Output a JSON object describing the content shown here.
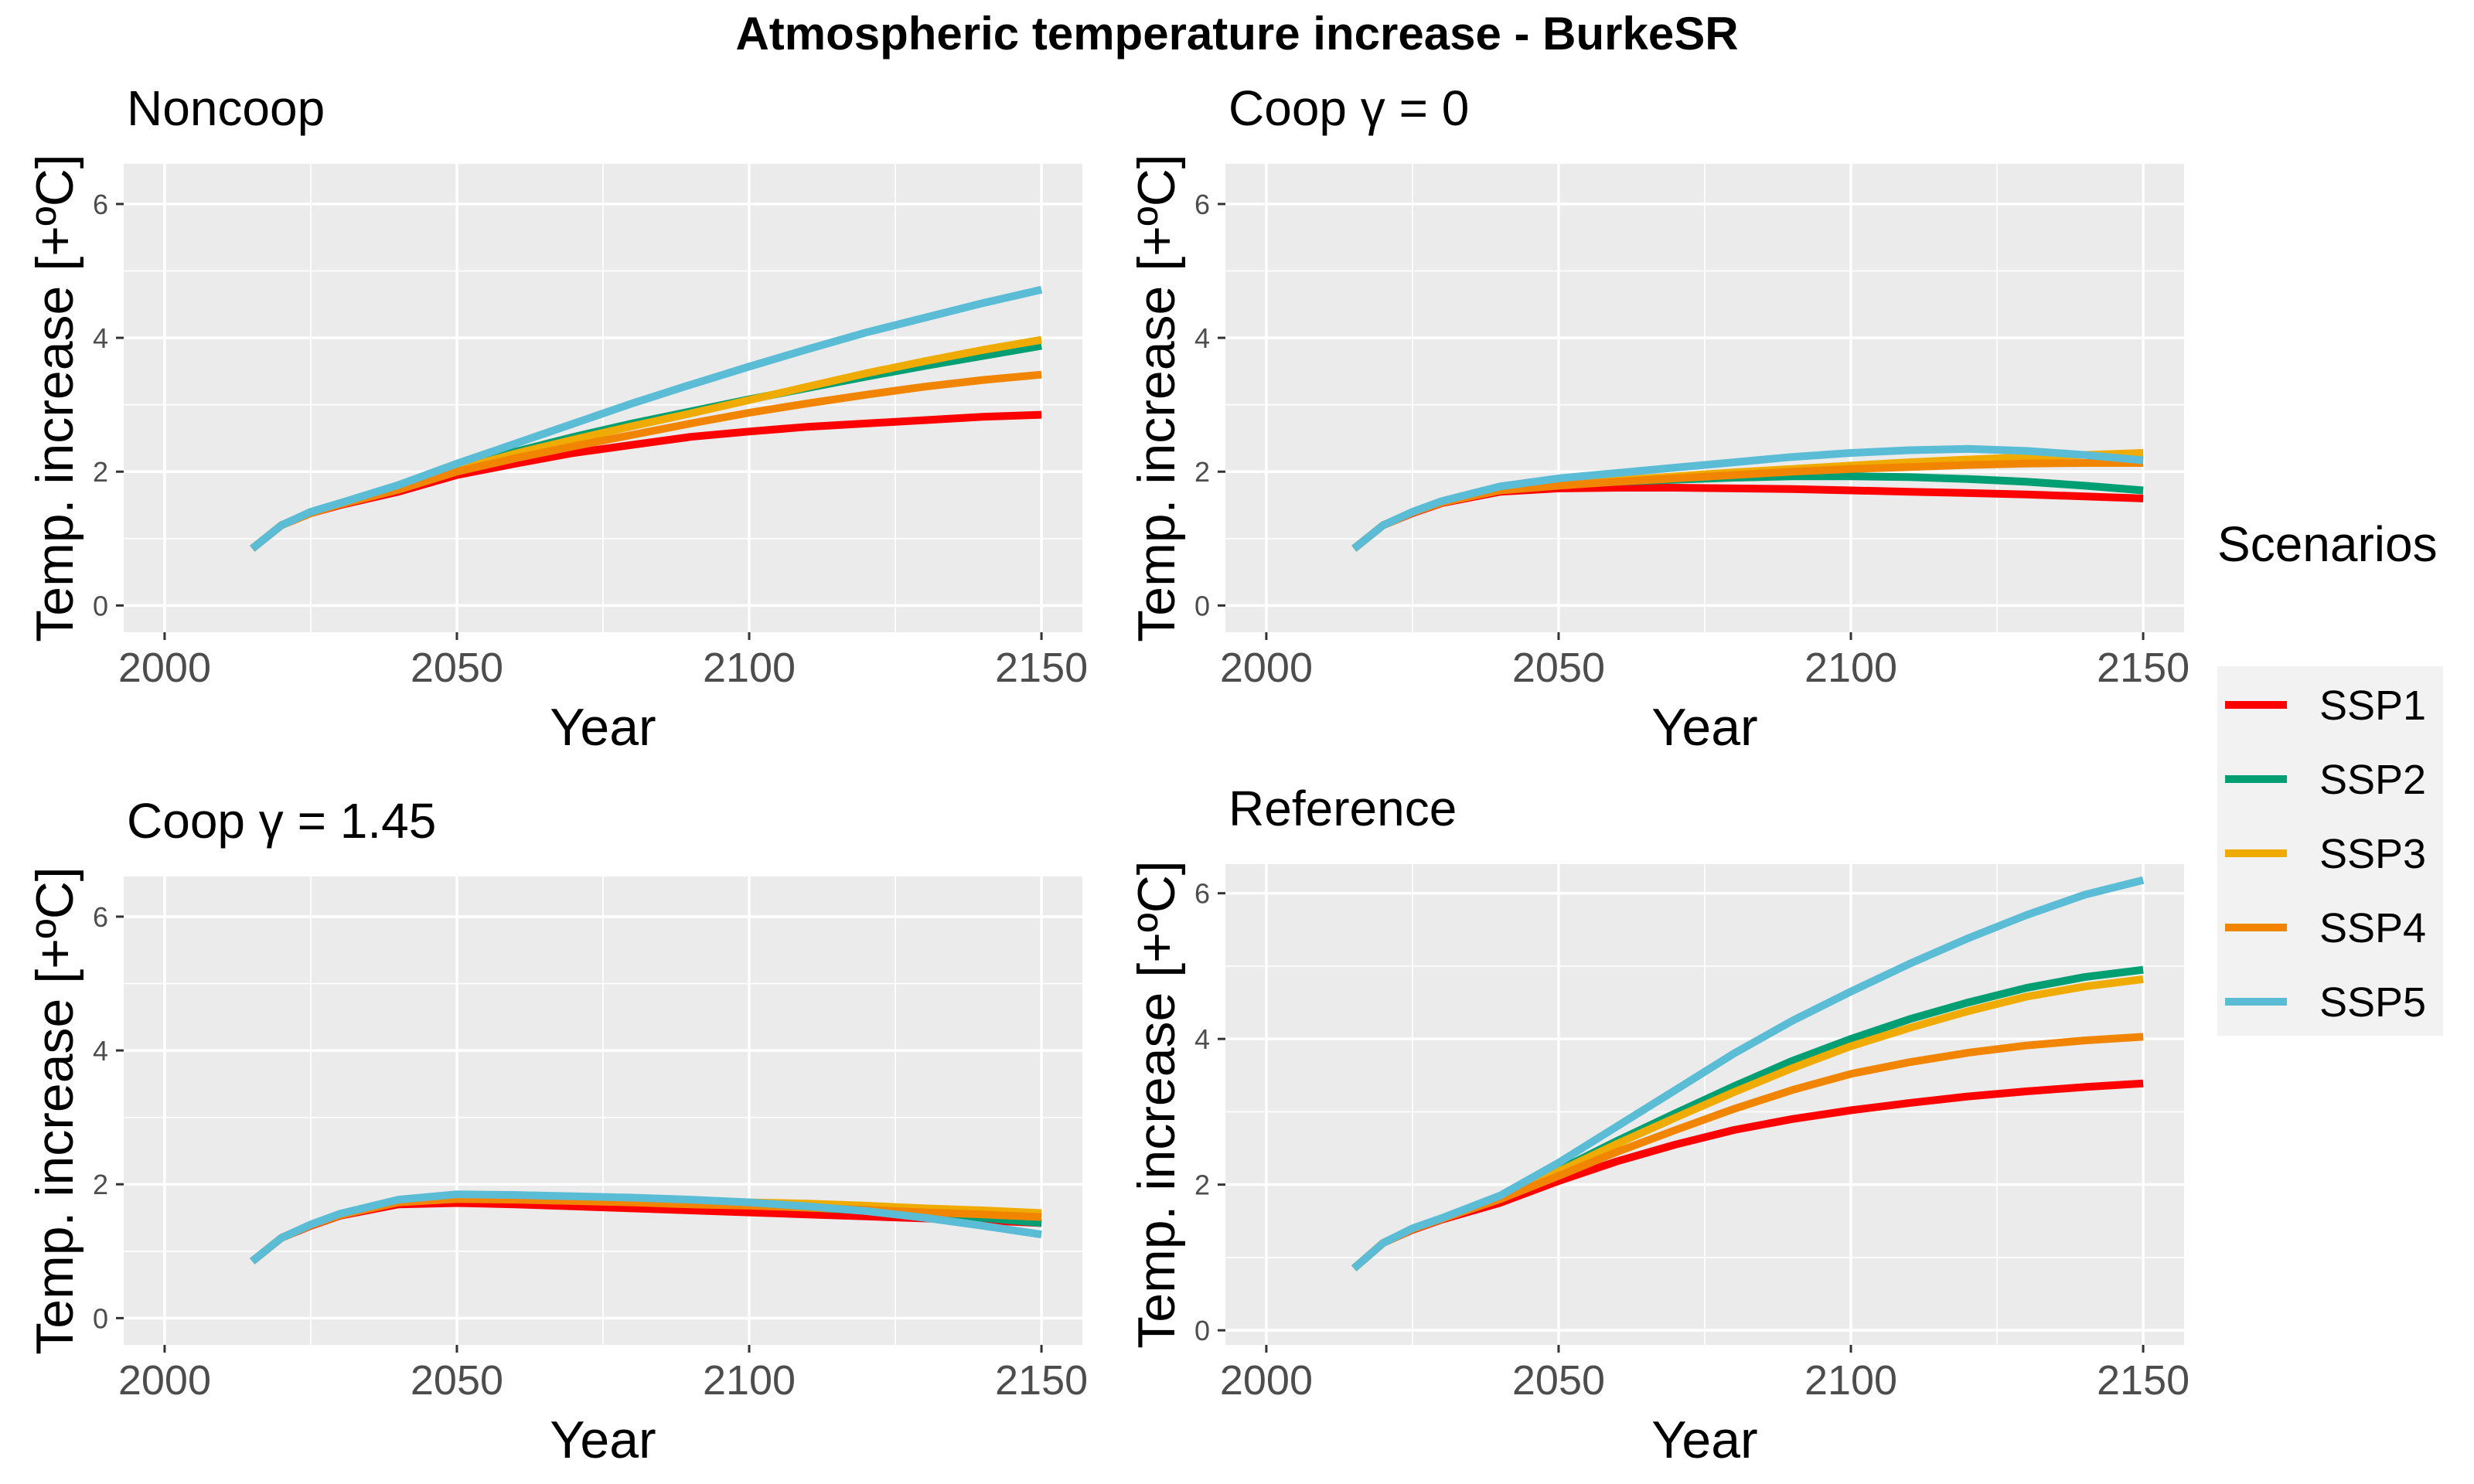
{
  "figure": {
    "title": "Atmospheric temperature increase - BurkeSR",
    "legend_title": "Scenarios"
  },
  "series_colors": {
    "SSP1": "#ff0000",
    "SSP2": "#009e73",
    "SSP3": "#f0ab00",
    "SSP4": "#f28500",
    "SSP5": "#5bbcd6"
  },
  "chart_data": [
    {
      "type": "line",
      "title": "Noncoop",
      "xlabel": "Year",
      "ylabel": "Temp. increase [+ºC]",
      "xlim": [
        1993,
        2157
      ],
      "ylim": [
        -0.4,
        6.6
      ],
      "xticks": [
        2000,
        2050,
        2100,
        2150
      ],
      "yticks": [
        0,
        2,
        4,
        6
      ],
      "grid": true,
      "x": [
        2015,
        2020,
        2025,
        2030,
        2040,
        2050,
        2060,
        2070,
        2080,
        2090,
        2100,
        2110,
        2120,
        2130,
        2140,
        2150
      ],
      "series": [
        {
          "name": "SSP1",
          "values": [
            0.85,
            1.2,
            1.38,
            1.5,
            1.7,
            1.95,
            2.12,
            2.28,
            2.4,
            2.52,
            2.6,
            2.67,
            2.72,
            2.77,
            2.82,
            2.85
          ]
        },
        {
          "name": "SSP2",
          "values": [
            0.85,
            1.2,
            1.39,
            1.52,
            1.76,
            2.05,
            2.3,
            2.52,
            2.72,
            2.9,
            3.08,
            3.25,
            3.42,
            3.58,
            3.73,
            3.88
          ]
        },
        {
          "name": "SSP3",
          "values": [
            0.85,
            1.2,
            1.39,
            1.52,
            1.75,
            2.03,
            2.27,
            2.48,
            2.68,
            2.87,
            3.07,
            3.27,
            3.47,
            3.65,
            3.82,
            3.97
          ]
        },
        {
          "name": "SSP4",
          "values": [
            0.85,
            1.2,
            1.38,
            1.51,
            1.73,
            2.0,
            2.2,
            2.38,
            2.55,
            2.72,
            2.88,
            3.02,
            3.15,
            3.27,
            3.37,
            3.45
          ]
        },
        {
          "name": "SSP5",
          "values": [
            0.85,
            1.2,
            1.4,
            1.53,
            1.8,
            2.12,
            2.42,
            2.72,
            3.02,
            3.3,
            3.57,
            3.83,
            4.08,
            4.3,
            4.52,
            4.72
          ]
        }
      ]
    },
    {
      "type": "line",
      "title": "Coop γ = 0",
      "xlabel": "Year",
      "ylabel": "Temp. increase [+ºC]",
      "xlim": [
        1993,
        2157
      ],
      "ylim": [
        -0.4,
        6.6
      ],
      "xticks": [
        2000,
        2050,
        2100,
        2150
      ],
      "yticks": [
        0,
        2,
        4,
        6
      ],
      "grid": true,
      "x": [
        2015,
        2020,
        2025,
        2030,
        2040,
        2050,
        2060,
        2070,
        2080,
        2090,
        2100,
        2110,
        2120,
        2130,
        2140,
        2150
      ],
      "series": [
        {
          "name": "SSP1",
          "values": [
            0.85,
            1.2,
            1.38,
            1.53,
            1.7,
            1.75,
            1.76,
            1.76,
            1.75,
            1.74,
            1.72,
            1.7,
            1.68,
            1.66,
            1.63,
            1.6
          ]
        },
        {
          "name": "SSP2",
          "values": [
            0.85,
            1.2,
            1.39,
            1.55,
            1.73,
            1.8,
            1.85,
            1.88,
            1.91,
            1.93,
            1.93,
            1.92,
            1.89,
            1.85,
            1.79,
            1.72
          ]
        },
        {
          "name": "SSP3",
          "values": [
            0.85,
            1.2,
            1.39,
            1.54,
            1.73,
            1.8,
            1.87,
            1.93,
            1.99,
            2.04,
            2.09,
            2.14,
            2.18,
            2.22,
            2.25,
            2.28
          ]
        },
        {
          "name": "SSP4",
          "values": [
            0.85,
            1.2,
            1.39,
            1.54,
            1.72,
            1.79,
            1.85,
            1.9,
            1.95,
            2.0,
            2.04,
            2.07,
            2.1,
            2.12,
            2.13,
            2.13
          ]
        },
        {
          "name": "SSP5",
          "values": [
            0.85,
            1.2,
            1.4,
            1.56,
            1.78,
            1.9,
            1.98,
            2.06,
            2.14,
            2.22,
            2.28,
            2.32,
            2.34,
            2.31,
            2.25,
            2.17
          ]
        }
      ]
    },
    {
      "type": "line",
      "title": "Coop γ = 1.45",
      "xlabel": "Year",
      "ylabel": "Temp. increase [+ºC]",
      "xlim": [
        1993,
        2157
      ],
      "ylim": [
        -0.4,
        6.6
      ],
      "xticks": [
        2000,
        2050,
        2100,
        2150
      ],
      "yticks": [
        0,
        2,
        4,
        6
      ],
      "grid": true,
      "x": [
        2015,
        2020,
        2025,
        2030,
        2040,
        2050,
        2060,
        2070,
        2080,
        2090,
        2100,
        2110,
        2120,
        2130,
        2140,
        2150
      ],
      "series": [
        {
          "name": "SSP1",
          "values": [
            0.85,
            1.2,
            1.38,
            1.53,
            1.7,
            1.72,
            1.7,
            1.67,
            1.64,
            1.61,
            1.58,
            1.55,
            1.52,
            1.49,
            1.46,
            1.42
          ]
        },
        {
          "name": "SSP2",
          "values": [
            0.85,
            1.2,
            1.39,
            1.54,
            1.74,
            1.8,
            1.79,
            1.77,
            1.75,
            1.72,
            1.69,
            1.65,
            1.61,
            1.56,
            1.5,
            1.42
          ]
        },
        {
          "name": "SSP3",
          "values": [
            0.85,
            1.2,
            1.39,
            1.54,
            1.74,
            1.8,
            1.8,
            1.79,
            1.78,
            1.76,
            1.73,
            1.71,
            1.68,
            1.64,
            1.61,
            1.57
          ]
        },
        {
          "name": "SSP4",
          "values": [
            0.85,
            1.2,
            1.39,
            1.54,
            1.73,
            1.78,
            1.77,
            1.75,
            1.73,
            1.7,
            1.68,
            1.65,
            1.62,
            1.58,
            1.55,
            1.51
          ]
        },
        {
          "name": "SSP5",
          "values": [
            0.85,
            1.2,
            1.4,
            1.56,
            1.77,
            1.85,
            1.84,
            1.82,
            1.8,
            1.77,
            1.73,
            1.67,
            1.6,
            1.5,
            1.38,
            1.25
          ]
        }
      ]
    },
    {
      "type": "line",
      "title": "Reference",
      "xlabel": "Year",
      "ylabel": "Temp. increase [+ºC]",
      "xlim": [
        1993,
        2157
      ],
      "ylim": [
        -0.2,
        6.4
      ],
      "xticks": [
        2000,
        2050,
        2100,
        2150
      ],
      "yticks": [
        0,
        2,
        4,
        6
      ],
      "grid": true,
      "x": [
        2015,
        2020,
        2025,
        2030,
        2040,
        2050,
        2060,
        2070,
        2080,
        2090,
        2100,
        2110,
        2120,
        2130,
        2140,
        2150
      ],
      "series": [
        {
          "name": "SSP1",
          "values": [
            0.85,
            1.2,
            1.38,
            1.52,
            1.75,
            2.05,
            2.32,
            2.55,
            2.75,
            2.9,
            3.02,
            3.12,
            3.21,
            3.28,
            3.34,
            3.39
          ]
        },
        {
          "name": "SSP2",
          "values": [
            0.85,
            1.2,
            1.39,
            1.53,
            1.82,
            2.2,
            2.6,
            2.98,
            3.35,
            3.7,
            4.0,
            4.27,
            4.5,
            4.7,
            4.85,
            4.95
          ]
        },
        {
          "name": "SSP3",
          "values": [
            0.85,
            1.2,
            1.39,
            1.53,
            1.82,
            2.18,
            2.56,
            2.92,
            3.27,
            3.6,
            3.9,
            4.15,
            4.38,
            4.58,
            4.72,
            4.82
          ]
        },
        {
          "name": "SSP4",
          "values": [
            0.85,
            1.2,
            1.39,
            1.53,
            1.8,
            2.12,
            2.45,
            2.75,
            3.04,
            3.3,
            3.52,
            3.68,
            3.81,
            3.91,
            3.98,
            4.03
          ]
        },
        {
          "name": "SSP5",
          "values": [
            0.85,
            1.2,
            1.4,
            1.54,
            1.85,
            2.3,
            2.8,
            3.3,
            3.8,
            4.25,
            4.65,
            5.03,
            5.38,
            5.7,
            5.98,
            6.18
          ]
        }
      ]
    }
  ]
}
